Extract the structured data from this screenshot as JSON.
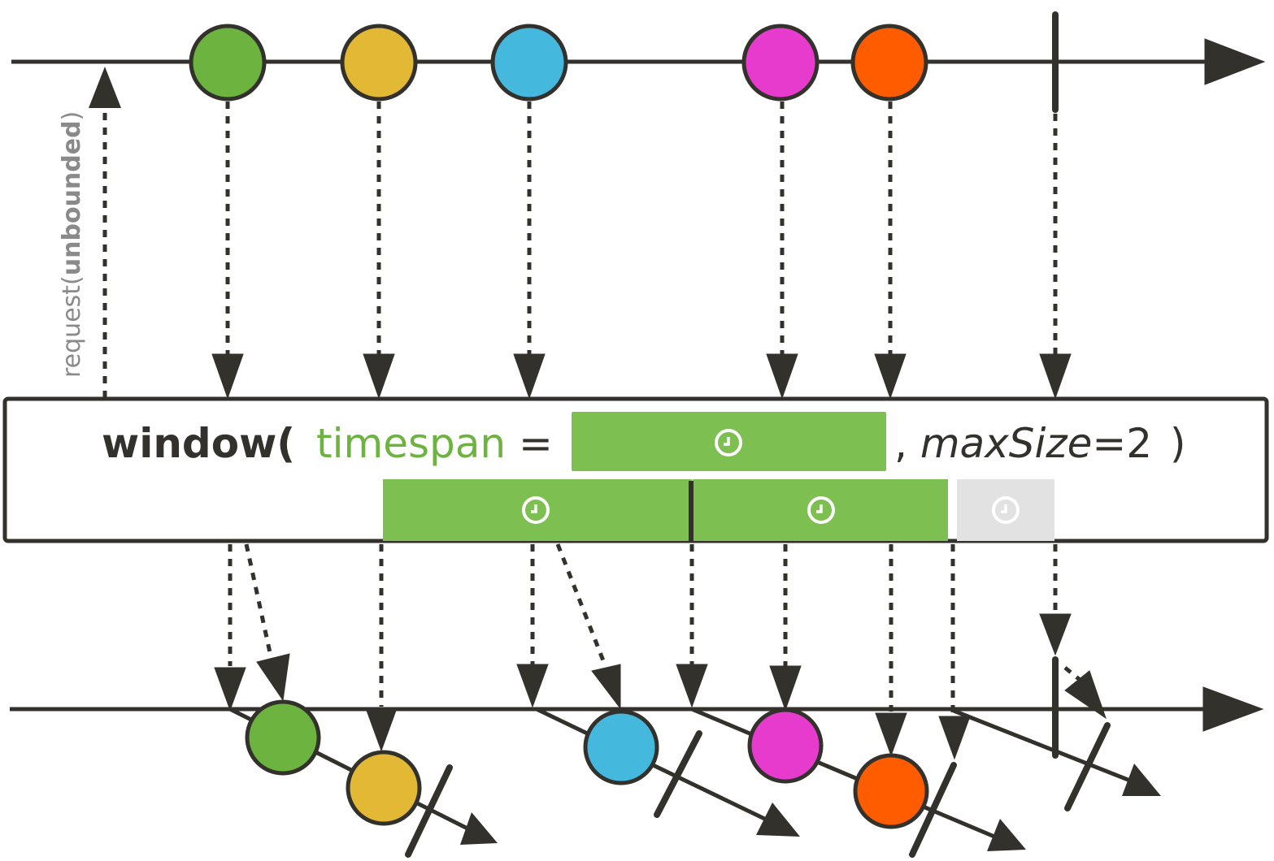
{
  "request_label": {
    "prefix": "request(",
    "bold": "unbounded",
    "suffix": ")"
  },
  "operator": {
    "name": "window(",
    "param1_name": "timespan",
    "equals": " =",
    "separator": ",",
    "param2_name": "maxSize",
    "param2_value": "=2",
    "close": ")"
  },
  "colors": {
    "line": "#33312c",
    "green": "#6db33f",
    "yellow": "#e3b834",
    "blue": "#45b8de",
    "magenta": "#e63bcc",
    "orange": "#ff5c00",
    "timer_green": "#7dbf50",
    "timer_grey": "#e2e2e2",
    "label_grey": "#8a8a8a",
    "param_green": "#6db33f"
  },
  "source_marbles": [
    "green",
    "yellow",
    "blue",
    "magenta",
    "orange"
  ],
  "source_completes": true,
  "windows": [
    {
      "marbles": [
        "green",
        "yellow"
      ],
      "ended_by": "maxSize"
    },
    {
      "marbles": [
        "blue"
      ],
      "ended_by": "timespan"
    },
    {
      "marbles": [
        "magenta",
        "orange"
      ],
      "ended_by": "maxSize"
    },
    {
      "marbles": [],
      "ended_by": "source-complete"
    }
  ],
  "icons": {
    "clock": "clock-icon"
  }
}
